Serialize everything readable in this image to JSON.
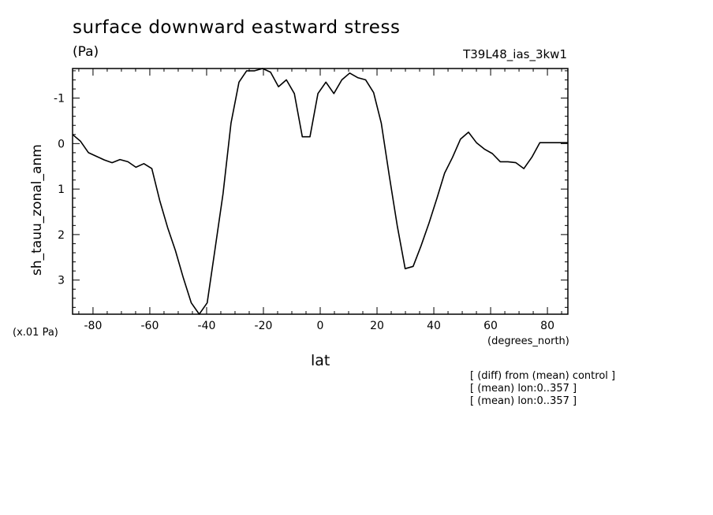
{
  "chart_data": {
    "type": "line",
    "title": "surface downward eastward stress",
    "units": "(Pa)",
    "run_id": "T39L48_ias_3kw1",
    "xlabel": "lat",
    "xunits": "(degrees_north)",
    "ylabel": "sh_tauu_zonal_anm",
    "yscale_note": "(x.01 Pa)",
    "notes": [
      "[ (diff) from (mean) control ]",
      "[ (mean) lon:0..357 ]",
      "[ (mean) lon:0..357 ]"
    ],
    "xlim": [
      -87.2,
      87.2
    ],
    "ylim": [
      3.75,
      -1.65
    ],
    "y_inverted": true,
    "xticks": [
      -80,
      -60,
      -40,
      -20,
      0,
      20,
      40,
      60,
      80
    ],
    "xtick_labels": [
      "-80",
      "-60",
      "-40",
      "-20",
      "0",
      "20",
      "40",
      "60",
      "80"
    ],
    "yticks": [
      -1,
      0,
      1,
      2,
      3
    ],
    "ytick_labels": [
      "-1",
      "0",
      "1",
      "2",
      "3"
    ],
    "grid": false,
    "series": [
      {
        "x": [
          -87.2,
          -84.4,
          -81.6,
          -78.8,
          -76.0,
          -73.3,
          -70.5,
          -67.7,
          -64.9,
          -62.1,
          -59.3,
          -56.5,
          -53.7,
          -51.0,
          -48.2,
          -45.4,
          -42.6,
          -39.8,
          -37.0,
          -34.2,
          -31.4,
          -28.6,
          -25.9,
          -23.1,
          -20.3,
          -17.5,
          -14.7,
          -11.9,
          -9.1,
          -6.3,
          -3.6,
          -0.8,
          2.0,
          4.8,
          7.6,
          10.4,
          13.2,
          16.0,
          18.8,
          21.5,
          24.3,
          27.1,
          29.9,
          32.7,
          35.5,
          38.3,
          41.1,
          43.8,
          46.6,
          49.4,
          52.2,
          55.0,
          57.8,
          60.6,
          63.4,
          66.1,
          68.9,
          71.7,
          74.5,
          77.3,
          80.1,
          82.9,
          85.7,
          87.2
        ],
        "y": [
          -0.2,
          -0.05,
          0.2,
          0.28,
          0.36,
          0.42,
          0.35,
          0.4,
          0.52,
          0.44,
          0.55,
          1.25,
          1.85,
          2.35,
          2.95,
          3.5,
          3.75,
          3.5,
          2.3,
          1.1,
          -0.45,
          -1.35,
          -1.6,
          -1.6,
          -1.65,
          -1.57,
          -1.25,
          -1.4,
          -1.1,
          -0.15,
          -0.15,
          -1.1,
          -1.35,
          -1.1,
          -1.4,
          -1.55,
          -1.45,
          -1.4,
          -1.12,
          -0.45,
          0.7,
          1.8,
          2.75,
          2.7,
          2.25,
          1.75,
          1.2,
          0.65,
          0.3,
          -0.1,
          -0.25,
          -0.02,
          0.12,
          0.22,
          0.4,
          0.4,
          0.42,
          0.55,
          0.3,
          -0.02,
          -0.02,
          -0.02,
          -0.02,
          -0.02
        ]
      }
    ]
  }
}
